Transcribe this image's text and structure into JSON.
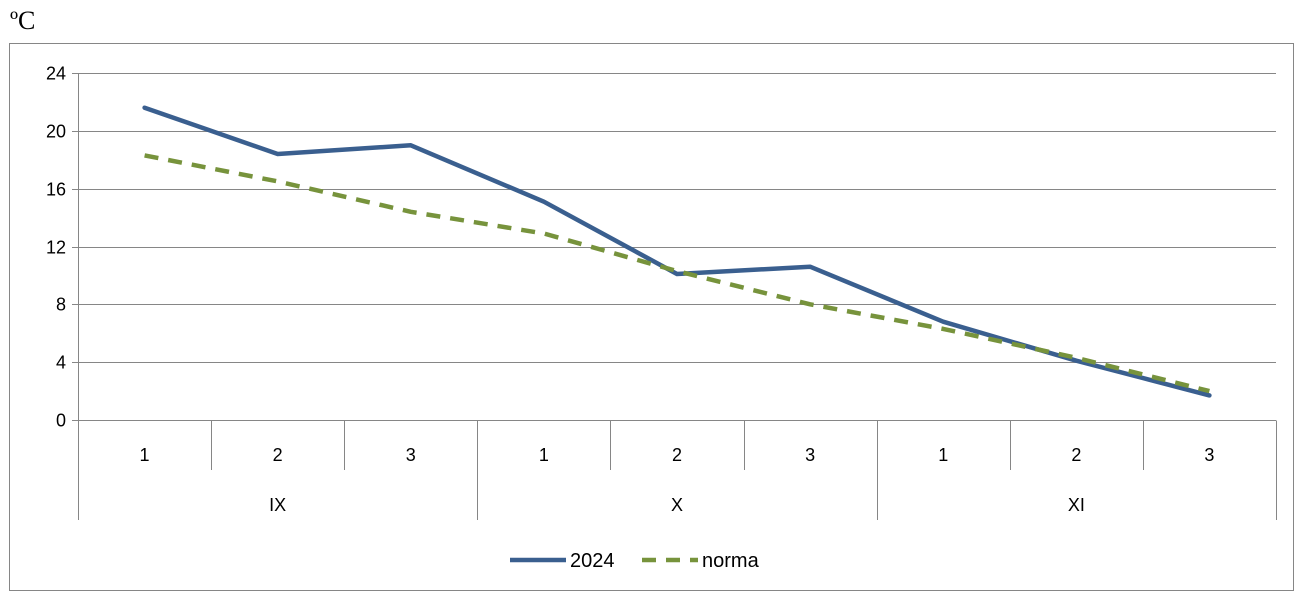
{
  "chart_data": {
    "type": "line",
    "unit_label": "ºC",
    "title": "",
    "xlabel": "",
    "ylabel": "",
    "ylim": [
      0,
      24
    ],
    "yticks": [
      0,
      4,
      8,
      12,
      16,
      20,
      24
    ],
    "grid": true,
    "legend_position": "bottom",
    "categories": [
      "1",
      "2",
      "3",
      "1",
      "2",
      "3",
      "1",
      "2",
      "3"
    ],
    "groups": [
      {
        "label": "IX",
        "span": 3
      },
      {
        "label": "X",
        "span": 3
      },
      {
        "label": "XI",
        "span": 3
      }
    ],
    "series": [
      {
        "name": "2024",
        "color": "#3a5f8f",
        "style": "solid",
        "values": [
          21.6,
          18.4,
          19.0,
          15.1,
          10.1,
          10.6,
          6.8,
          4.1,
          1.7
        ]
      },
      {
        "name": "norma",
        "color": "#77933c",
        "style": "dashed",
        "values": [
          18.3,
          16.5,
          14.4,
          12.9,
          10.3,
          8.0,
          6.3,
          4.3,
          2.0
        ]
      }
    ]
  }
}
